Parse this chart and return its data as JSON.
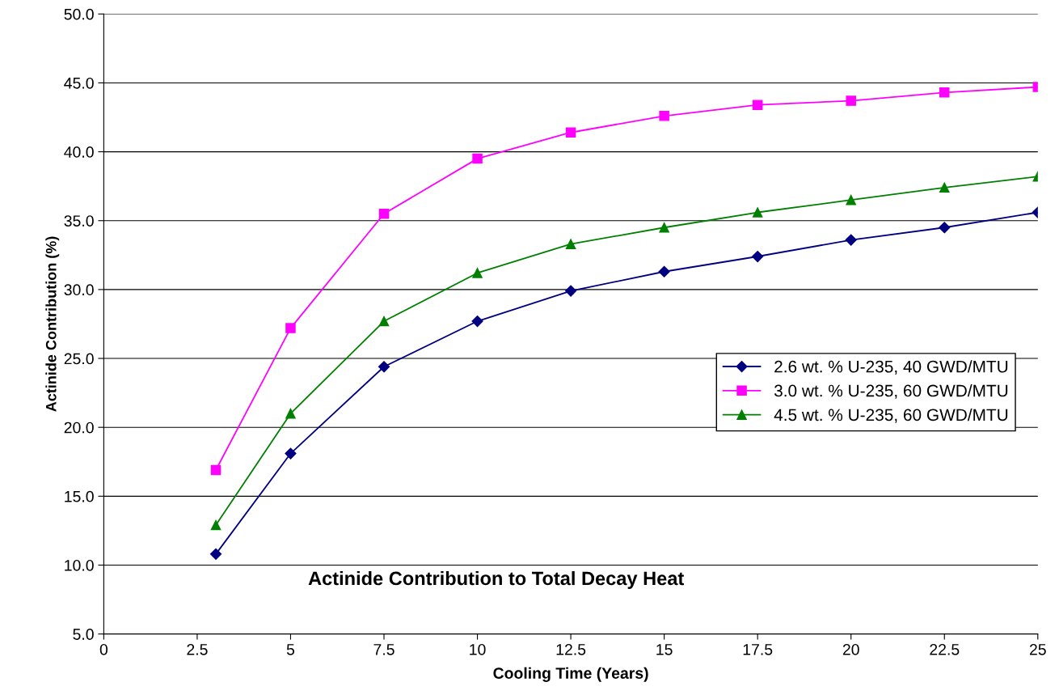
{
  "chart_data": {
    "type": "line",
    "title": "Actinide Contribution to Total Decay Heat",
    "xlabel": "Cooling Time (Years)",
    "ylabel": "Actinide Contribution (%)",
    "xlim": [
      0,
      25
    ],
    "xticks": [
      0,
      2.5,
      5,
      7.5,
      10,
      12.5,
      15,
      17.5,
      20,
      22.5,
      25
    ],
    "ylim": [
      5,
      50
    ],
    "yticks": [
      {
        "value": 5,
        "label": "5.0"
      },
      {
        "value": 10,
        "label": "10.0"
      },
      {
        "value": 15,
        "label": "15.0"
      },
      {
        "value": 20,
        "label": "20.0"
      },
      {
        "value": 25,
        "label": "25.0"
      },
      {
        "value": 30,
        "label": "30.0"
      },
      {
        "value": 35,
        "label": "35.0"
      },
      {
        "value": 40,
        "label": "40.0"
      },
      {
        "value": 45,
        "label": "45.0"
      },
      {
        "value": 50,
        "label": "50.0"
      }
    ],
    "x": [
      3,
      5,
      7.5,
      10,
      12.5,
      15,
      17.5,
      20,
      22.5,
      25
    ],
    "grid": "y",
    "legend": "right",
    "series": [
      {
        "name": "2.6 wt. % U-235, 40 GWD/MTU",
        "color": "#000080",
        "marker": "diamond",
        "values": [
          10.8,
          18.1,
          24.4,
          27.7,
          29.9,
          31.3,
          32.4,
          33.6,
          34.5,
          35.6
        ]
      },
      {
        "name": "3.0 wt. % U-235, 60 GWD/MTU",
        "color": "#ff00ff",
        "marker": "square",
        "values": [
          16.9,
          27.2,
          35.5,
          39.5,
          41.4,
          42.6,
          43.4,
          43.7,
          44.3,
          44.7
        ]
      },
      {
        "name": "4.5 wt. % U-235, 60 GWD/MTU",
        "color": "#008000",
        "marker": "triangle",
        "values": [
          12.9,
          21.0,
          27.7,
          31.2,
          33.3,
          34.5,
          35.6,
          36.5,
          37.4,
          38.2
        ]
      }
    ]
  }
}
